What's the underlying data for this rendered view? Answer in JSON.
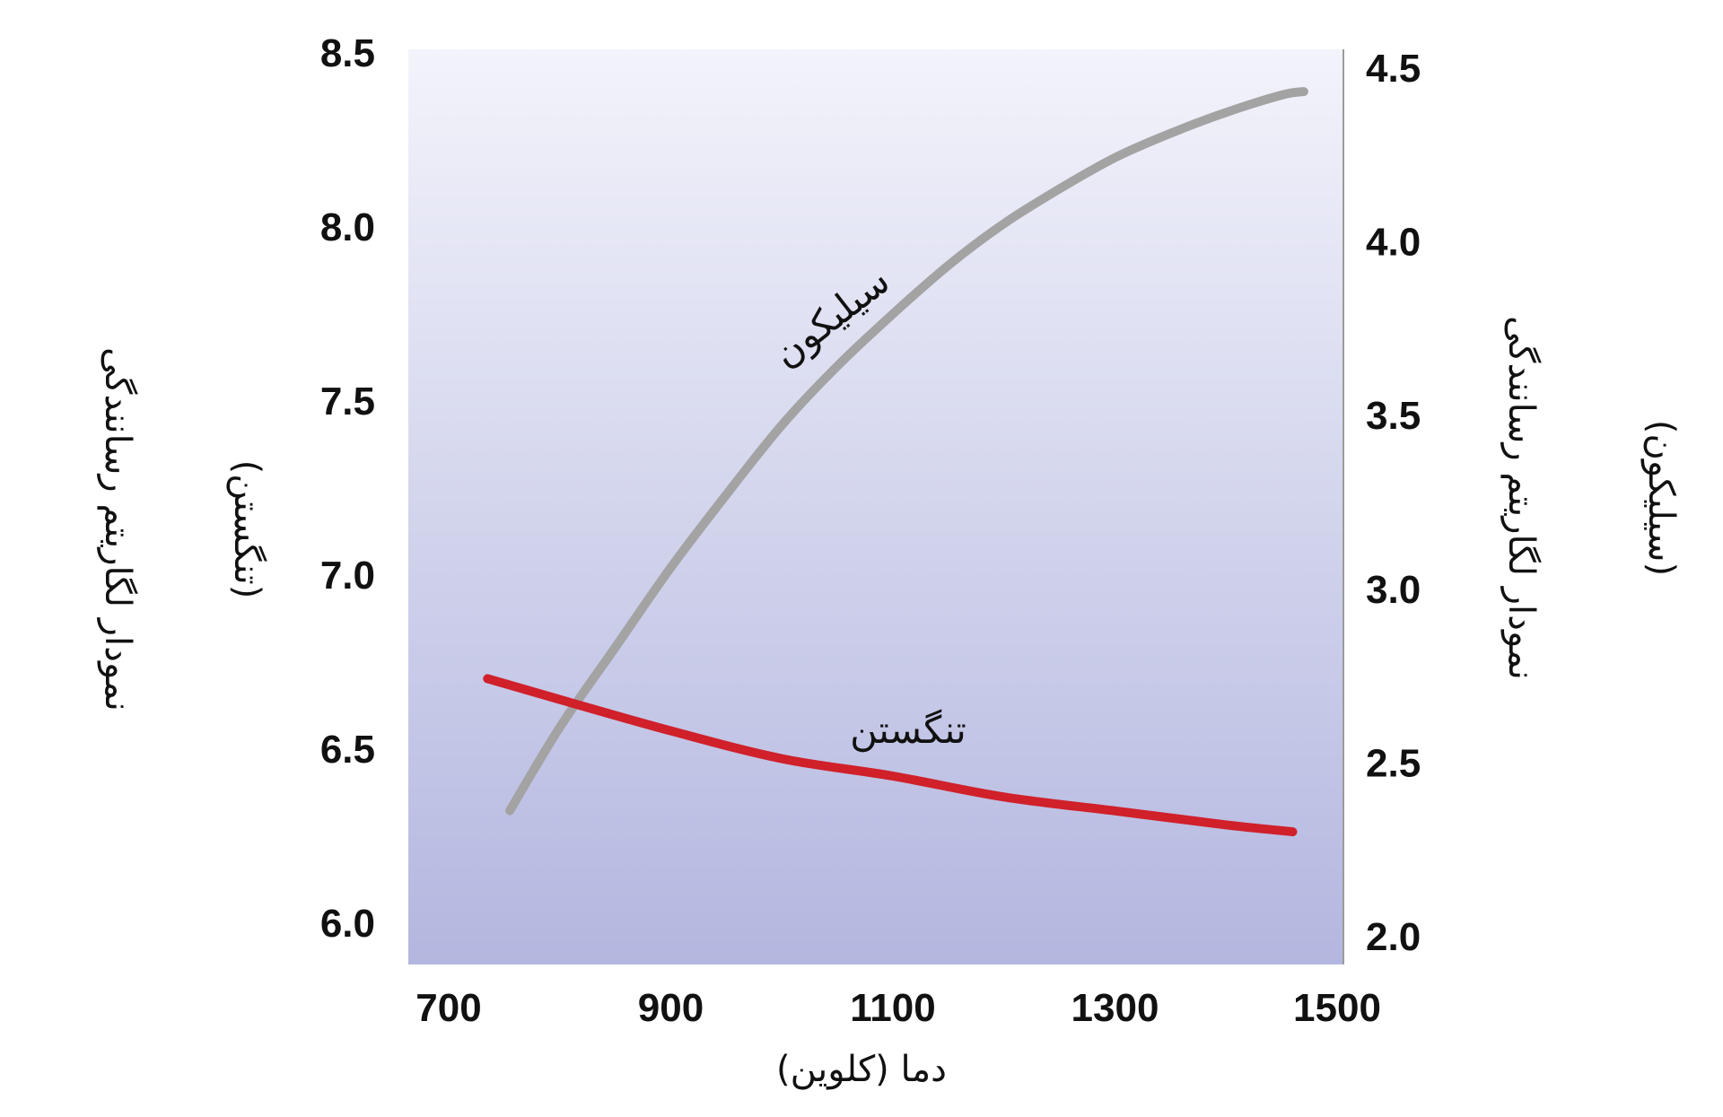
{
  "chart_data": {
    "type": "line",
    "xlabel": "دما (کلوین)",
    "xlim": [
      700,
      1500
    ],
    "x_ticks": [
      700,
      900,
      1100,
      1300,
      1500
    ],
    "y_left": {
      "label": "نمودار لگاریتم رسانندگی",
      "sublabel": "(تنگستن)",
      "lim": [
        6.0,
        8.5
      ],
      "ticks": [
        "6.0",
        "6.5",
        "7.0",
        "7.5",
        "8.0",
        "8.5"
      ]
    },
    "y_right": {
      "label": "نمودار لگاریتم رسانندگی",
      "sublabel": "(سیلیکون)",
      "lim": [
        2.0,
        4.5
      ],
      "ticks": [
        "2.0",
        "2.5",
        "3.0",
        "3.5",
        "4.0",
        "4.5"
      ]
    },
    "grid": false,
    "series": [
      {
        "name": "سیلیکون",
        "axis": "right",
        "color": "#a3a3a3",
        "x": [
          755,
          800,
          850,
          900,
          950,
          1000,
          1050,
          1100,
          1150,
          1200,
          1250,
          1300,
          1350,
          1400,
          1450,
          1470
        ],
        "y": [
          2.36,
          2.6,
          2.83,
          3.06,
          3.27,
          3.47,
          3.64,
          3.79,
          3.93,
          4.05,
          4.15,
          4.24,
          4.31,
          4.37,
          4.42,
          4.43
        ]
      },
      {
        "name": "تنگستن",
        "axis": "left",
        "color": "#d0202a",
        "x": [
          735,
          800,
          900,
          1000,
          1100,
          1200,
          1300,
          1400,
          1460
        ],
        "y": [
          6.7,
          6.64,
          6.55,
          6.47,
          6.42,
          6.36,
          6.32,
          6.28,
          6.26
        ]
      }
    ]
  }
}
